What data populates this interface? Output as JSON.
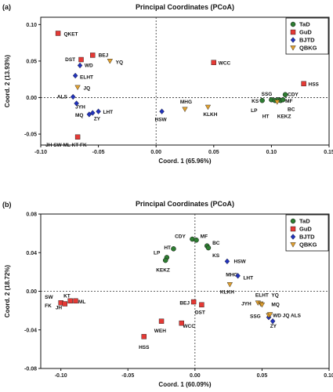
{
  "colors": {
    "TaD": "#2e7d32",
    "GuD": "#e53935",
    "BJTD": "#2233bb",
    "QBKG": "#e0a030",
    "axis": "#111111"
  },
  "chart_data": [
    {
      "type": "scatter",
      "panel": "(a)",
      "title": "Principal Coordinates (PCoA)",
      "xlabel": "Coord. 1 (65.96%)",
      "ylabel": "Coord. 2 (13.93%)",
      "xlim": [
        -0.1,
        0.15
      ],
      "ylim": [
        -0.065,
        0.11
      ],
      "xticks": [
        {
          "v": -0.1,
          "t": "-0.10"
        },
        {
          "v": -0.05,
          "t": "-0.05"
        },
        {
          "v": 0,
          "t": "0.00"
        },
        {
          "v": 0.05,
          "t": "0.05"
        },
        {
          "v": 0.1,
          "t": "0.10"
        },
        {
          "v": 0.15,
          "t": "0.15"
        }
      ],
      "yticks": [
        {
          "v": -0.05,
          "t": "-0.05"
        },
        {
          "v": 0,
          "t": "0.00"
        },
        {
          "v": 0.05,
          "t": "0.05"
        },
        {
          "v": 0.1,
          "t": "0.10"
        }
      ],
      "legend_position": "top-right",
      "series": [
        {
          "name": "TaD",
          "marker": "circle",
          "points": [
            {
              "x": 0.092,
              "y": -0.004
            },
            {
              "x": 0.1,
              "y": -0.003
            },
            {
              "x": 0.103,
              "y": -0.004
            },
            {
              "x": 0.106,
              "y": -0.003
            },
            {
              "x": 0.108,
              "y": -0.004
            },
            {
              "x": 0.11,
              "y": -0.003
            },
            {
              "x": 0.112,
              "y": 0.004
            }
          ]
        },
        {
          "name": "GuD",
          "marker": "square",
          "points": [
            {
              "x": -0.085,
              "y": 0.088
            },
            {
              "x": -0.065,
              "y": 0.052
            },
            {
              "x": -0.055,
              "y": 0.058
            },
            {
              "x": 0.05,
              "y": 0.048
            },
            {
              "x": 0.128,
              "y": 0.019
            },
            {
              "x": -0.068,
              "y": -0.054
            }
          ]
        },
        {
          "name": "BJTD",
          "marker": "diamond",
          "points": [
            {
              "x": -0.066,
              "y": 0.044
            },
            {
              "x": -0.07,
              "y": 0.03
            },
            {
              "x": -0.072,
              "y": 0.001
            },
            {
              "x": -0.069,
              "y": -0.008
            },
            {
              "x": -0.058,
              "y": -0.023
            },
            {
              "x": -0.055,
              "y": -0.021
            },
            {
              "x": -0.05,
              "y": -0.019
            },
            {
              "x": 0.005,
              "y": -0.019
            }
          ]
        },
        {
          "name": "QBKG",
          "marker": "triangle",
          "points": [
            {
              "x": -0.04,
              "y": 0.05
            },
            {
              "x": -0.068,
              "y": 0.014
            },
            {
              "x": 0.025,
              "y": -0.016
            },
            {
              "x": 0.045,
              "y": -0.013
            },
            {
              "x": 0.105,
              "y": -0.006
            }
          ]
        }
      ],
      "labels": [
        {
          "t": "QKET",
          "x": -0.08,
          "y": 0.087,
          "a": "start"
        },
        {
          "t": "DST",
          "x": -0.07,
          "y": 0.052,
          "a": "end"
        },
        {
          "t": "BEJ",
          "x": -0.05,
          "y": 0.058,
          "a": "start"
        },
        {
          "t": "WD",
          "x": -0.062,
          "y": 0.044,
          "a": "start"
        },
        {
          "t": "YQ",
          "x": -0.035,
          "y": 0.048,
          "a": "start"
        },
        {
          "t": "ELHT",
          "x": -0.066,
          "y": 0.028,
          "a": "start"
        },
        {
          "t": "JQ",
          "x": -0.063,
          "y": 0.013,
          "a": "start"
        },
        {
          "t": "ALS",
          "x": -0.077,
          "y": 0.001,
          "a": "end"
        },
        {
          "t": "JYH",
          "x": -0.07,
          "y": -0.013,
          "a": "start"
        },
        {
          "t": "LHT",
          "x": -0.046,
          "y": -0.02,
          "a": "start"
        },
        {
          "t": "MQ",
          "x": -0.063,
          "y": -0.024,
          "a": "end"
        },
        {
          "t": "ZY",
          "x": -0.054,
          "y": -0.029,
          "a": "start"
        },
        {
          "t": "JH SW  ML  KT  FK",
          "x": -0.078,
          "y": -0.065,
          "a": "middle"
        },
        {
          "t": "WCC",
          "x": 0.054,
          "y": 0.047,
          "a": "start"
        },
        {
          "t": "HSS",
          "x": 0.132,
          "y": 0.018,
          "a": "start"
        },
        {
          "t": "SSG",
          "x": 0.096,
          "y": 0.005,
          "a": "middle"
        },
        {
          "t": "CDY",
          "x": 0.114,
          "y": 0.004,
          "a": "start"
        },
        {
          "t": "KS",
          "x": 0.089,
          "y": -0.005,
          "a": "end"
        },
        {
          "t": "MF",
          "x": 0.112,
          "y": -0.005,
          "a": "start"
        },
        {
          "t": "LP",
          "x": 0.085,
          "y": -0.018,
          "a": "middle"
        },
        {
          "t": "BC",
          "x": 0.114,
          "y": -0.016,
          "a": "start"
        },
        {
          "t": "HT",
          "x": 0.095,
          "y": -0.026,
          "a": "middle"
        },
        {
          "t": "KEKZ",
          "x": 0.105,
          "y": -0.026,
          "a": "start"
        },
        {
          "t": "HSW",
          "x": 0.004,
          "y": -0.03,
          "a": "middle"
        },
        {
          "t": "MHG",
          "x": 0.026,
          "y": -0.006,
          "a": "middle"
        },
        {
          "t": "KLKH",
          "x": 0.047,
          "y": -0.023,
          "a": "middle"
        }
      ]
    },
    {
      "type": "scatter",
      "panel": "(b)",
      "title": "Principal Coordinates (PCoA)",
      "xlabel": "Coord. 1 (60.09%)",
      "ylabel": "Coord. 2 (18.72%)",
      "xlim": [
        -0.115,
        0.1
      ],
      "ylim": [
        -0.08,
        0.08
      ],
      "xticks": [
        {
          "v": -0.1,
          "t": "-0.10"
        },
        {
          "v": -0.05,
          "t": "-0.05"
        },
        {
          "v": 0,
          "t": "0.00"
        },
        {
          "v": 0.05,
          "t": "0.05"
        },
        {
          "v": 0.1,
          "t": "0.10"
        }
      ],
      "yticks": [
        {
          "v": -0.08,
          "t": "-0.08"
        },
        {
          "v": -0.04,
          "t": "-0.04"
        },
        {
          "v": 0,
          "t": "0.00"
        },
        {
          "v": 0.04,
          "t": "0.04"
        },
        {
          "v": 0.08,
          "t": "0.08"
        }
      ],
      "legend_position": "top-right",
      "series": [
        {
          "name": "TaD",
          "marker": "circle",
          "points": [
            {
              "x": -0.002,
              "y": 0.054
            },
            {
              "x": 0.001,
              "y": 0.053
            },
            {
              "x": 0.009,
              "y": 0.047
            },
            {
              "x": 0.01,
              "y": 0.045
            },
            {
              "x": -0.016,
              "y": 0.044
            },
            {
              "x": -0.021,
              "y": 0.035
            },
            {
              "x": -0.022,
              "y": 0.032
            }
          ]
        },
        {
          "name": "GuD",
          "marker": "square",
          "points": [
            {
              "x": -0.1,
              "y": -0.012
            },
            {
              "x": -0.097,
              "y": -0.013
            },
            {
              "x": -0.093,
              "y": -0.01
            },
            {
              "x": -0.089,
              "y": -0.01
            },
            {
              "x": -0.001,
              "y": -0.011
            },
            {
              "x": 0.005,
              "y": -0.014
            },
            {
              "x": -0.01,
              "y": -0.033
            },
            {
              "x": -0.025,
              "y": -0.031
            },
            {
              "x": -0.038,
              "y": -0.047
            }
          ]
        },
        {
          "name": "BJTD",
          "marker": "diamond",
          "points": [
            {
              "x": 0.024,
              "y": 0.031
            },
            {
              "x": 0.032,
              "y": 0.016
            },
            {
              "x": 0.055,
              "y": -0.027
            },
            {
              "x": 0.058,
              "y": -0.031
            }
          ]
        },
        {
          "name": "QBKG",
          "marker": "triangle",
          "points": [
            {
              "x": 0.026,
              "y": 0.007
            },
            {
              "x": 0.047,
              "y": -0.012
            },
            {
              "x": 0.049,
              "y": -0.013
            },
            {
              "x": 0.05,
              "y": -0.014
            },
            {
              "x": 0.055,
              "y": -0.025
            },
            {
              "x": 0.056,
              "y": -0.024
            }
          ]
        }
      ],
      "labels": [
        {
          "t": "CDY",
          "x": -0.007,
          "y": 0.057,
          "a": "end"
        },
        {
          "t": "MF",
          "x": 0.004,
          "y": 0.057,
          "a": "start"
        },
        {
          "t": "BC",
          "x": 0.013,
          "y": 0.05,
          "a": "start"
        },
        {
          "t": "HT",
          "x": -0.018,
          "y": 0.045,
          "a": "end"
        },
        {
          "t": "LP",
          "x": -0.026,
          "y": 0.04,
          "a": "end"
        },
        {
          "t": "KS",
          "x": 0.013,
          "y": 0.037,
          "a": "start"
        },
        {
          "t": "KEKZ",
          "x": -0.029,
          "y": 0.022,
          "a": "start"
        },
        {
          "t": "HSW",
          "x": 0.029,
          "y": 0.031,
          "a": "start"
        },
        {
          "t": "MHG",
          "x": 0.023,
          "y": 0.017,
          "a": "start"
        },
        {
          "t": "LHT",
          "x": 0.036,
          "y": 0.014,
          "a": "start"
        },
        {
          "t": "KLKH",
          "x": 0.024,
          "y": -0.001,
          "a": "middle"
        },
        {
          "t": "ELHT",
          "x": 0.05,
          "y": -0.004,
          "a": "middle"
        },
        {
          "t": "YQ",
          "x": 0.057,
          "y": -0.004,
          "a": "start"
        },
        {
          "t": "JYH",
          "x": 0.042,
          "y": -0.013,
          "a": "end"
        },
        {
          "t": "MQ",
          "x": 0.057,
          "y": -0.014,
          "a": "start"
        },
        {
          "t": "SSG",
          "x": 0.045,
          "y": -0.026,
          "a": "middle"
        },
        {
          "t": "WD JQ ALS",
          "x": 0.058,
          "y": -0.025,
          "a": "start"
        },
        {
          "t": "ZY",
          "x": 0.056,
          "y": -0.036,
          "a": "start"
        },
        {
          "t": "SW",
          "x": -0.112,
          "y": -0.006,
          "a": "start"
        },
        {
          "t": "KT",
          "x": -0.098,
          "y": -0.005,
          "a": "start"
        },
        {
          "t": "FK",
          "x": -0.112,
          "y": -0.015,
          "a": "start"
        },
        {
          "t": "JH",
          "x": -0.104,
          "y": -0.017,
          "a": "start"
        },
        {
          "t": "ML",
          "x": -0.087,
          "y": -0.011,
          "a": "start"
        },
        {
          "t": "BEJ",
          "x": -0.004,
          "y": -0.012,
          "a": "end"
        },
        {
          "t": "DST",
          "x": 0.0,
          "y": -0.022,
          "a": "start"
        },
        {
          "t": "WEH",
          "x": -0.026,
          "y": -0.041,
          "a": "middle"
        },
        {
          "t": "WCC",
          "x": -0.009,
          "y": -0.036,
          "a": "start"
        },
        {
          "t": "HSS",
          "x": -0.038,
          "y": -0.058,
          "a": "middle"
        }
      ]
    }
  ]
}
